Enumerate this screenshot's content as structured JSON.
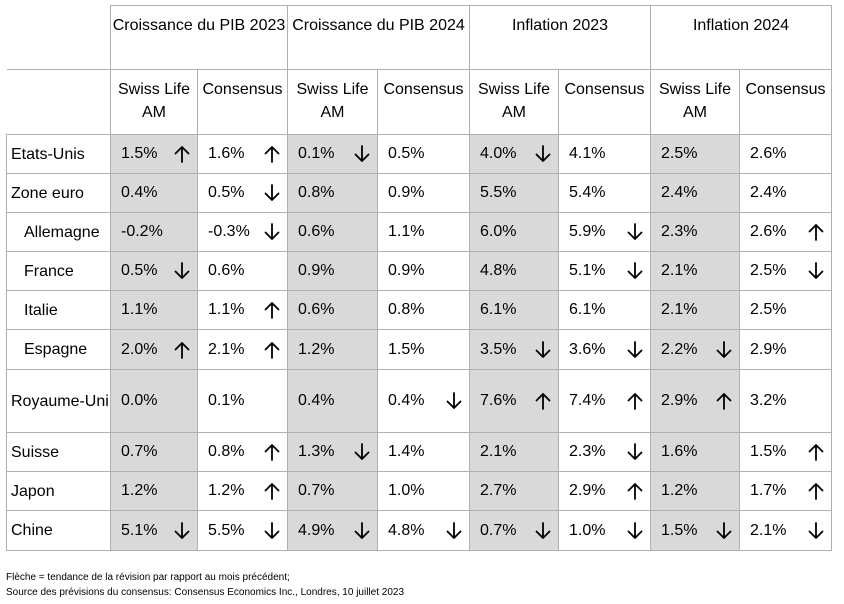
{
  "header": {
    "groups": [
      "Croissance du PIB 2023",
      "Croissance du PIB 2024",
      "Inflation 2023",
      "Inflation 2024"
    ],
    "sub": [
      "Swiss Life AM",
      "Consensus"
    ]
  },
  "rows": [
    {
      "name": "Etats-Unis",
      "indent": false,
      "cells": [
        [
          "1.5%",
          "up"
        ],
        [
          "1.6%",
          "up"
        ],
        [
          "0.1%",
          "down"
        ],
        [
          "0.5%",
          ""
        ],
        [
          "4.0%",
          "down"
        ],
        [
          "4.1%",
          ""
        ],
        [
          "2.5%",
          ""
        ],
        [
          "2.6%",
          ""
        ]
      ]
    },
    {
      "name": "Zone euro",
      "indent": false,
      "cells": [
        [
          "0.4%",
          ""
        ],
        [
          "0.5%",
          "down"
        ],
        [
          "0.8%",
          ""
        ],
        [
          "0.9%",
          ""
        ],
        [
          "5.5%",
          ""
        ],
        [
          "5.4%",
          ""
        ],
        [
          "2.4%",
          ""
        ],
        [
          "2.4%",
          ""
        ]
      ]
    },
    {
      "name": "Allemagne",
      "indent": true,
      "cells": [
        [
          "-0.2%",
          ""
        ],
        [
          "-0.3%",
          "down"
        ],
        [
          "0.6%",
          ""
        ],
        [
          "1.1%",
          ""
        ],
        [
          "6.0%",
          ""
        ],
        [
          "5.9%",
          "down"
        ],
        [
          "2.3%",
          ""
        ],
        [
          "2.6%",
          "up"
        ]
      ]
    },
    {
      "name": "France",
      "indent": true,
      "cells": [
        [
          "0.5%",
          "down"
        ],
        [
          "0.6%",
          ""
        ],
        [
          "0.9%",
          ""
        ],
        [
          "0.9%",
          ""
        ],
        [
          "4.8%",
          ""
        ],
        [
          "5.1%",
          "down"
        ],
        [
          "2.1%",
          ""
        ],
        [
          "2.5%",
          "down"
        ]
      ]
    },
    {
      "name": "Italie",
      "indent": true,
      "cells": [
        [
          "1.1%",
          ""
        ],
        [
          "1.1%",
          "up"
        ],
        [
          "0.6%",
          ""
        ],
        [
          "0.8%",
          ""
        ],
        [
          "6.1%",
          ""
        ],
        [
          "6.1%",
          ""
        ],
        [
          "2.1%",
          ""
        ],
        [
          "2.5%",
          ""
        ]
      ]
    },
    {
      "name": "Espagne",
      "indent": true,
      "cells": [
        [
          "2.0%",
          "up"
        ],
        [
          "2.1%",
          "up"
        ],
        [
          "1.2%",
          ""
        ],
        [
          "1.5%",
          ""
        ],
        [
          "3.5%",
          "down"
        ],
        [
          "3.6%",
          "down"
        ],
        [
          "2.2%",
          "down"
        ],
        [
          "2.9%",
          ""
        ]
      ]
    },
    {
      "name": "Royaume-Uni",
      "indent": false,
      "cells": [
        [
          "0.0%",
          ""
        ],
        [
          "0.1%",
          ""
        ],
        [
          "0.4%",
          ""
        ],
        [
          "0.4%",
          "down"
        ],
        [
          "7.6%",
          "up"
        ],
        [
          "7.4%",
          "up"
        ],
        [
          "2.9%",
          "up"
        ],
        [
          "3.2%",
          ""
        ]
      ]
    },
    {
      "name": "Suisse",
      "indent": false,
      "cells": [
        [
          "0.7%",
          ""
        ],
        [
          "0.8%",
          "up"
        ],
        [
          "1.3%",
          "down"
        ],
        [
          "1.4%",
          ""
        ],
        [
          "2.1%",
          ""
        ],
        [
          "2.3%",
          "down"
        ],
        [
          "1.6%",
          ""
        ],
        [
          "1.5%",
          "up"
        ]
      ]
    },
    {
      "name": "Japon",
      "indent": false,
      "cells": [
        [
          "1.2%",
          ""
        ],
        [
          "1.2%",
          "up"
        ],
        [
          "0.7%",
          ""
        ],
        [
          "1.0%",
          ""
        ],
        [
          "2.7%",
          ""
        ],
        [
          "2.9%",
          "up"
        ],
        [
          "1.2%",
          ""
        ],
        [
          "1.7%",
          "up"
        ]
      ]
    },
    {
      "name": "Chine",
      "indent": false,
      "cells": [
        [
          "5.1%",
          "down"
        ],
        [
          "5.5%",
          "down"
        ],
        [
          "4.9%",
          "down"
        ],
        [
          "4.8%",
          "down"
        ],
        [
          "0.7%",
          "down"
        ],
        [
          "1.0%",
          "down"
        ],
        [
          "1.5%",
          "down"
        ],
        [
          "2.1%",
          "down"
        ]
      ]
    }
  ],
  "footnotes": [
    "Flèche = tendance de la révision par rapport au mois précédent;",
    "Source des prévisions du consensus: Consensus Economics Inc., Londres, 10 juillet 2023"
  ],
  "colors": {
    "shade": "#d9d9d9",
    "border": "#b0b0b0"
  }
}
